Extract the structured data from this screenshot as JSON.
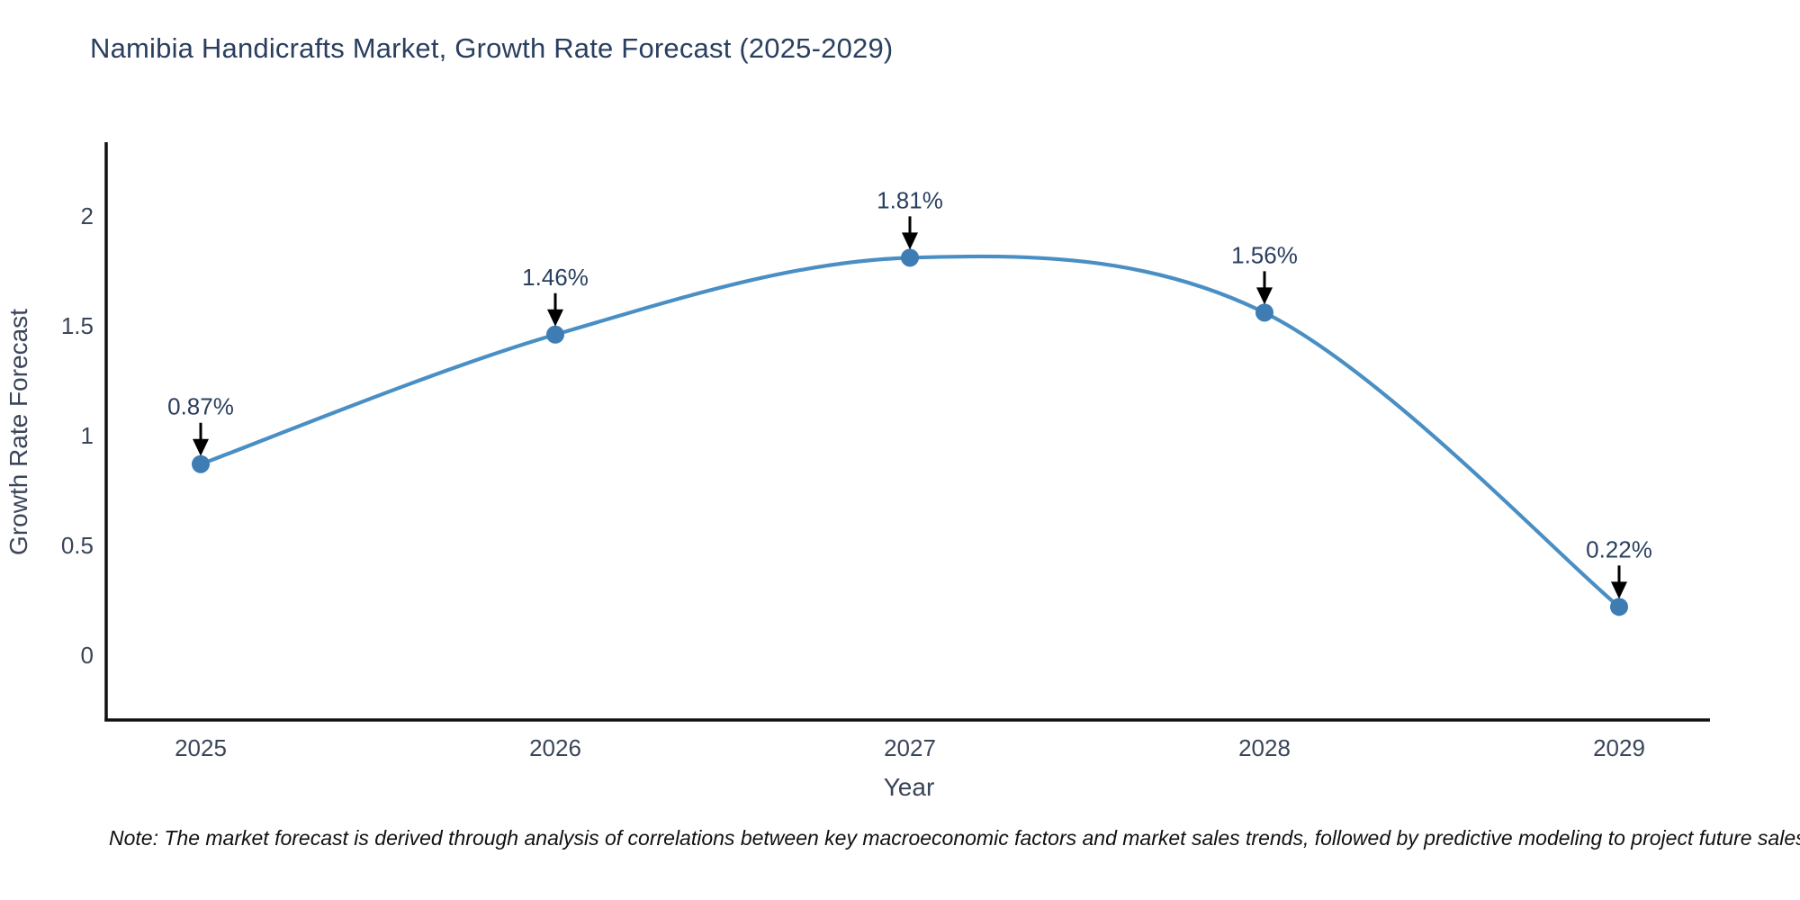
{
  "title": "Namibia Handicrafts Market, Growth Rate Forecast (2025-2029)",
  "note": "Note: The market forecast is derived through analysis of correlations between key macroeconomic factors and market sales trends, followed by predictive modeling to project future sales",
  "chart_data": {
    "type": "line",
    "title": "Namibia Handicrafts Market, Growth Rate Forecast (2025-2029)",
    "xlabel": "Year",
    "ylabel": "Growth Rate Forecast",
    "categories": [
      "2025",
      "2026",
      "2027",
      "2028",
      "2029"
    ],
    "series": [
      {
        "name": "Growth Rate Forecast",
        "values": [
          0.87,
          1.46,
          1.81,
          1.56,
          0.22
        ]
      }
    ],
    "point_labels": [
      "0.87%",
      "1.46%",
      "1.81%",
      "1.56%",
      "0.22%"
    ],
    "yticks": [
      "0",
      "0.5",
      "1",
      "1.5",
      "2"
    ],
    "ytick_values": [
      0,
      0.5,
      1,
      1.5,
      2
    ],
    "ylim": [
      -0.3,
      2.33
    ],
    "line_shape": "spline",
    "grid": false,
    "legend_position": "none",
    "colors": {
      "line": "#4a8fc4",
      "marker": "#3e7db4",
      "annotation_arrow": "#000000",
      "annotation_text": "#2a3f5f",
      "axis": "#111111",
      "tick_text": "#3a4559",
      "title_text": "#2a3f5f"
    }
  }
}
